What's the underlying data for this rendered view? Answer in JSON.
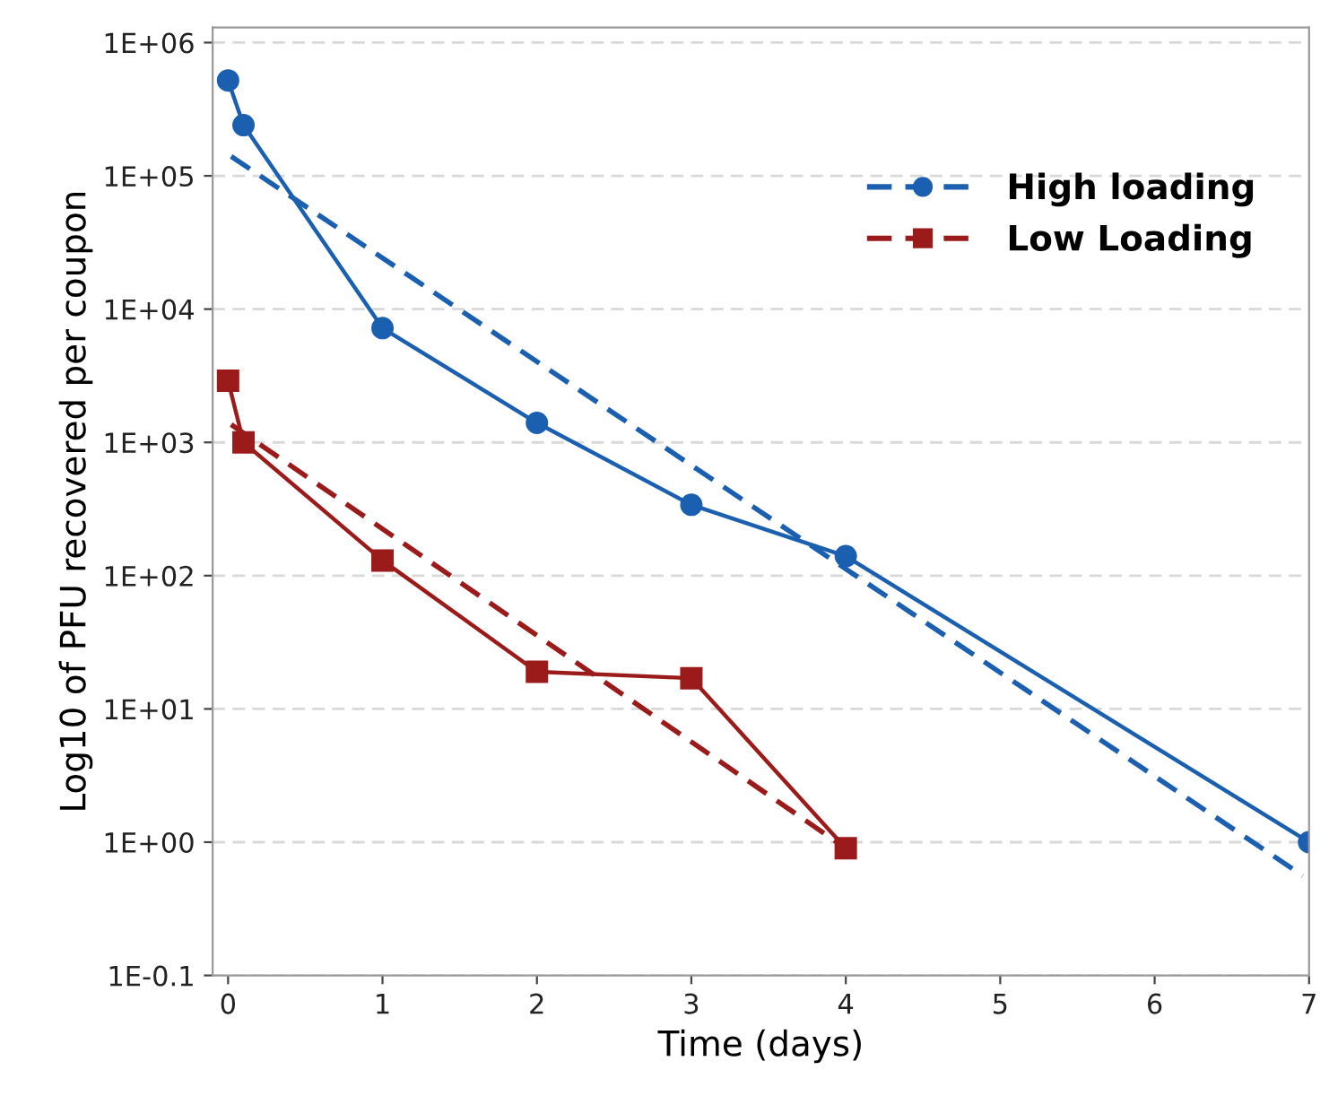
{
  "chart_data": {
    "type": "line",
    "xlabel": "Time (days)",
    "ylabel": "Log10 of PFU recovered per coupon",
    "log": "y",
    "grid": "y",
    "legend": "top right",
    "xlim": [
      -0.1,
      7
    ],
    "xticks": [
      0,
      1,
      2,
      3,
      4,
      5,
      6,
      7
    ],
    "ylim": [
      0.1,
      1300000
    ],
    "yticks": [
      {
        "value": 0.1,
        "label": "1E-0.1"
      },
      {
        "value": 1,
        "label": "1E+00"
      },
      {
        "value": 10,
        "label": "1E+01"
      },
      {
        "value": 100,
        "label": "1E+02"
      },
      {
        "value": 1000,
        "label": "1E+03"
      },
      {
        "value": 10000,
        "label": "1E+04"
      },
      {
        "value": 100000,
        "label": "1E+05"
      },
      {
        "value": 1000000,
        "label": "1E+06"
      }
    ],
    "series": [
      {
        "name": "High loading",
        "color": "#1a5fb0",
        "marker": "circle",
        "line_style": "solid",
        "x": [
          0,
          0.1,
          1,
          2,
          3,
          4,
          7
        ],
        "values": [
          520000,
          240000,
          7200,
          1400,
          340,
          140,
          1
        ]
      },
      {
        "color": "#1a5fb0",
        "marker": "none",
        "line_style": "dashed",
        "x": [
          0.02,
          6.96
        ],
        "values": [
          140000,
          0.56
        ]
      },
      {
        "name": "Low Loading",
        "color": "#9b1b1b",
        "marker": "square",
        "line_style": "solid",
        "x": [
          0,
          0.1,
          1,
          2,
          3,
          4
        ],
        "values": [
          2900,
          1000,
          130,
          19,
          17,
          0.9
        ]
      },
      {
        "color": "#9b1b1b",
        "marker": "none",
        "line_style": "dashed",
        "x": [
          0.02,
          4
        ],
        "values": [
          1360,
          0.9
        ]
      }
    ]
  }
}
